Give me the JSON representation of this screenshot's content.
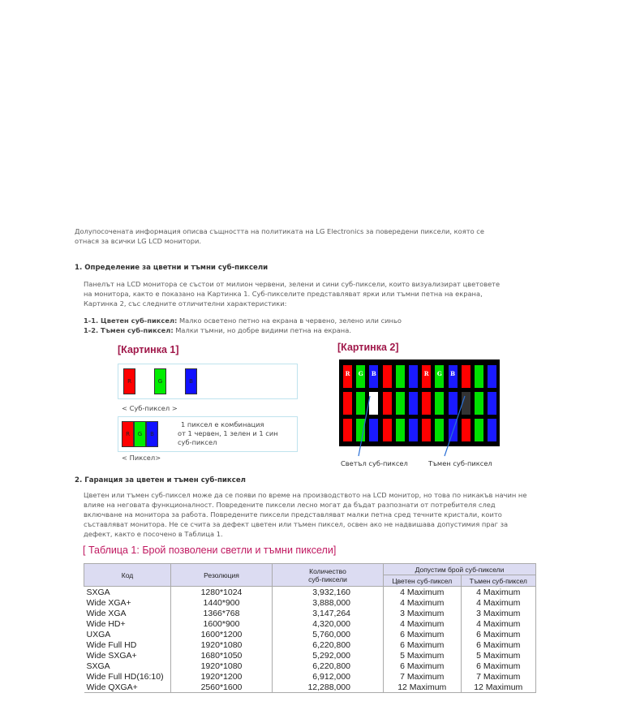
{
  "intro": [
    "Долупосочената информация описва същността на политиката на LG Electronics за повередени пиксели, която се",
    "отнася за всички LG LCD монитори."
  ],
  "section1": {
    "title": "1. Определение за цветни и тъмни суб-пиксели",
    "para": [
      "Панелът на LCD монитора се състои от милион червени, зелени и сини суб-пиксели, които визуализират цветовете",
      "на монитора, както е показано на Картинка 1. Суб-пикселите представляват ярки или тъмни петна на екрана,",
      "Картинка 2, със следните отличителни характеристики:"
    ],
    "items": [
      {
        "term": "1-1. Цветен суб-пиксел:",
        "desc": " Малко осветено петно на екрана в червено, зелено или синьо"
      },
      {
        "term": "1-2. Тъмен суб-пиксел:",
        "desc": " Малки тъмни, но добре видими петна на екрана."
      }
    ]
  },
  "figure1": {
    "caption": "[Картинка 1]",
    "subpixels": [
      "R",
      "G",
      "B"
    ],
    "subpixel_label": "< Суб-пиксел >",
    "pixel_text": [
      "1 пиксел е комбинация",
      "от 1 червен, 1 зелен и 1 син",
      "суб-пиксел"
    ],
    "pixel_label": "< Пиксел>"
  },
  "figure2": {
    "caption": "[Картинка 2]",
    "letters": [
      "R",
      "G",
      "B"
    ],
    "bright_label": "Светъл суб-пиксел",
    "dark_label": "Тъмен суб-пиксел"
  },
  "colors": {
    "red": "#ff0000",
    "green": "#00e000",
    "blue": "#1a1aff",
    "caption": "#a0184a",
    "header_bg": "#dcdcf2"
  },
  "section2": {
    "title": "2. Гаранция за цветен и тъмен суб-пиксел",
    "para": [
      "Цветен или тъмен суб-пиксел може да се появи по време на производството на LCD монитор, но това по никакъв начин не",
      "влияе на неговата функционалност. Повредените пиксели лесно могат да бъдат разпознати от потребителя след",
      "включване на монитора за работа. Повредените пиксели представляват малки петна сред течните кристали, които",
      "съставляват монитора. Не се счита за дефект цветен или тъмен пиксел, освен ако не надвишава допустимия праг за",
      "дефект, както е посочено в Таблица 1."
    ]
  },
  "table": {
    "caption": "[ Таблица 1: Брой позволени светли и тъмни пиксели]",
    "headers": {
      "code": "Код",
      "resolution": "Резолюция",
      "count": [
        "Количество",
        "суб-пиксели"
      ],
      "allowed": "Допустим брой суб-пиксели",
      "color": "Цветен суб-пиксел",
      "dark": "Тъмен суб-пиксел"
    },
    "rows": [
      [
        "SXGA",
        "1280*1024",
        "3,932,160",
        "4 Maximum",
        "4 Maximum"
      ],
      [
        "Wide XGA+",
        "1440*900",
        "3,888,000",
        "4 Maximum",
        "4 Maximum"
      ],
      [
        "Wide XGA",
        "1366*768",
        "3,147,264",
        "3 Maximum",
        "3 Maximum"
      ],
      [
        "Wide HD+",
        "1600*900",
        "4,320,000",
        "4 Maximum",
        "4 Maximum"
      ],
      [
        "UXGA",
        "1600*1200",
        "5,760,000",
        "6 Maximum",
        "6 Maximum"
      ],
      [
        "Wide Full HD",
        "1920*1080",
        "6,220,800",
        "6 Maximum",
        "6 Maximum"
      ],
      [
        "Wide SXGA+",
        "1680*1050",
        "5,292,000",
        "5 Maximum",
        "5 Maximum"
      ],
      [
        "SXGA",
        "1920*1080",
        "6,220,800",
        "6 Maximum",
        "6 Maximum"
      ],
      [
        "Wide Full HD(16:10)",
        "1920*1200",
        "6,912,000",
        "7 Maximum",
        "7 Maximum"
      ],
      [
        "Wide QXGA+",
        "2560*1600",
        "12,288,000",
        "12 Maximum",
        "12 Maximum"
      ]
    ]
  }
}
